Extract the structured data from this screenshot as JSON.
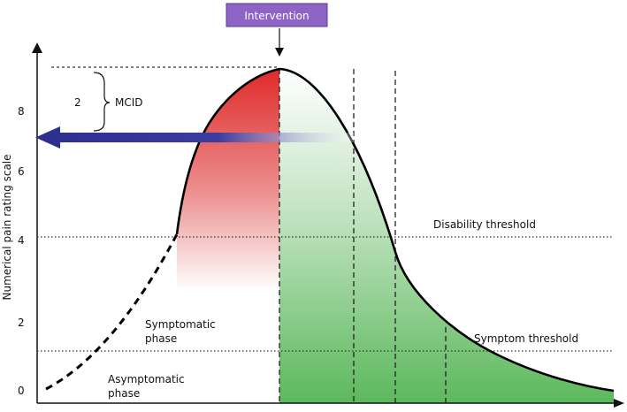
{
  "intervention": {
    "label": "Intervention"
  },
  "mcid": {
    "value_label": "2",
    "label": "MCID"
  },
  "y_axis": {
    "label": "Numerical pain rating scale",
    "ticks": [
      "0",
      "2",
      "4",
      "6",
      "8"
    ]
  },
  "thresholds": {
    "disability": "Disability threshold",
    "symptom": "Symptom threshold"
  },
  "phases": {
    "symptomatic_line1": "Symptomatic",
    "symptomatic_line2": "phase",
    "asymptomatic_line1": "Asymptomatic",
    "asymptomatic_line2": "phase"
  },
  "colors": {
    "intervention_box": "#8e63c6",
    "pain_red": "#e03a3a",
    "recovery_green": "#5cb85c",
    "arrow_blue": "#2e2f8f"
  }
}
